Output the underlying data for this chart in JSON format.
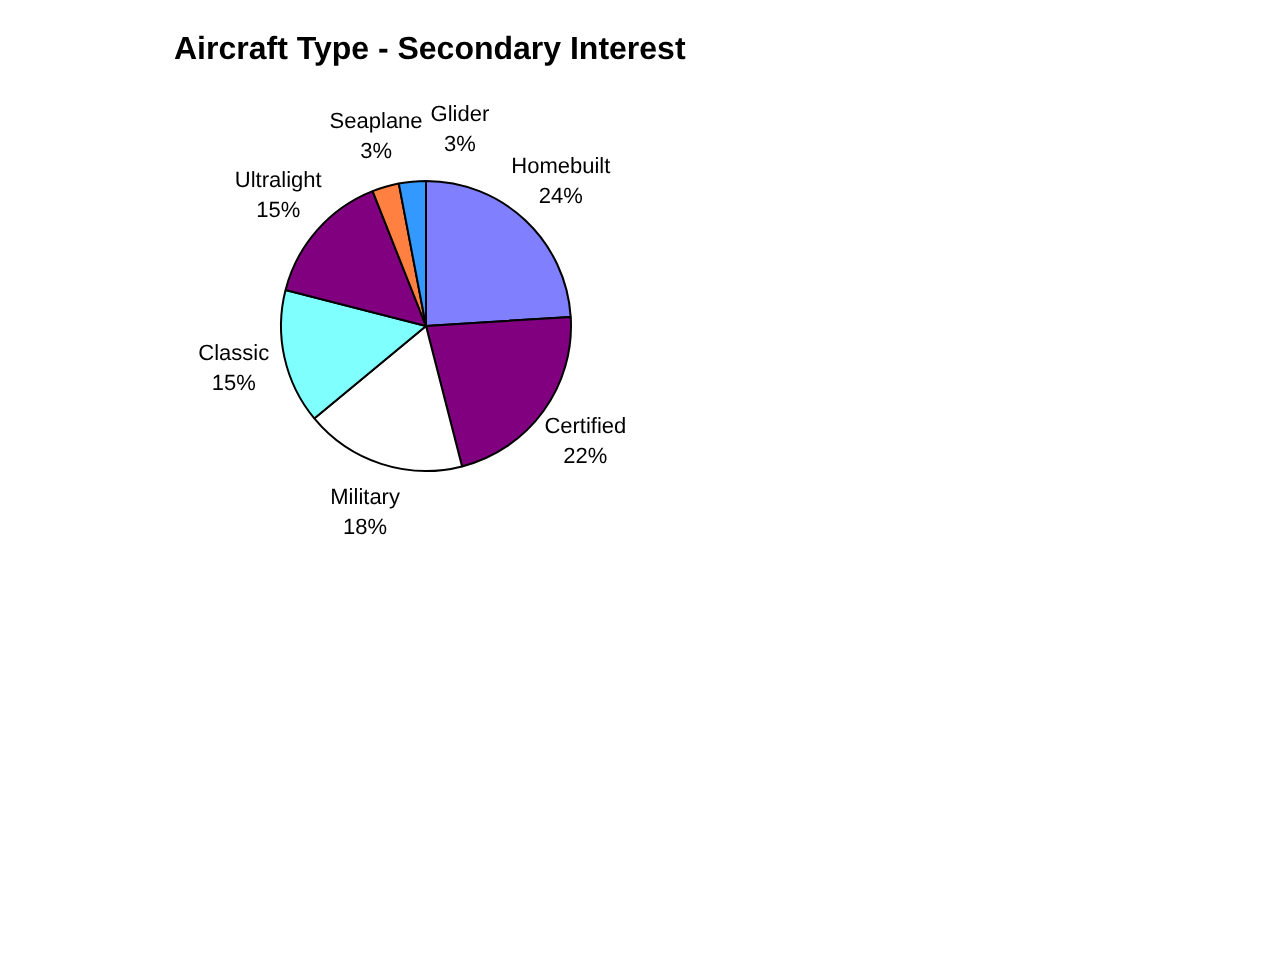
{
  "chart_data": {
    "type": "pie",
    "title": "Aircraft Type - Secondary Interest",
    "categories": [
      "Homebuilt",
      "Certified",
      "Military",
      "Classic",
      "Ultralight",
      "Seaplane",
      "Glider"
    ],
    "values": [
      24,
      22,
      18,
      15,
      15,
      3,
      3
    ],
    "colors": [
      "#8080ff",
      "#800080",
      "#ffffff",
      "#80ffff",
      "#800080",
      "#ff8040",
      "#3399ff"
    ],
    "value_labels": [
      "24%",
      "22%",
      "18%",
      "15%",
      "15%",
      "3%",
      "3%"
    ],
    "legend": false
  }
}
